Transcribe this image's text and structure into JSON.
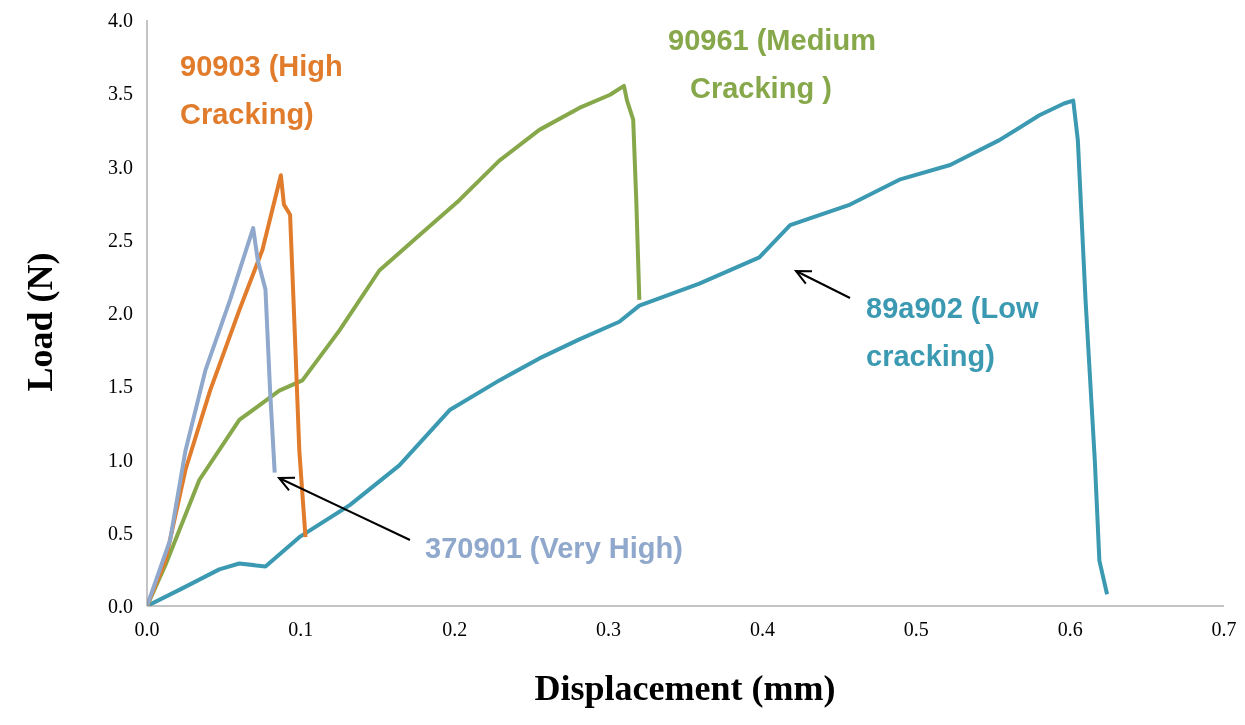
{
  "chart_data": {
    "type": "line",
    "xlabel": "Displacement (mm)",
    "ylabel": "Load (N)",
    "xlim": [
      0,
      0.7
    ],
    "xticks": [
      {
        "value": 0,
        "label": "0.0"
      },
      0.1,
      0.2,
      0.3,
      0.4,
      0.5,
      0.6,
      0.7
    ],
    "ylim": [
      0,
      4
    ],
    "yticks": [
      {
        "value": 0,
        "label": "0.0"
      },
      0.5,
      {
        "value": 1,
        "label": "1.0"
      },
      1.5,
      {
        "value": 2,
        "label": "2.0"
      },
      2.5,
      {
        "value": 3,
        "label": "3.0"
      },
      3.5,
      {
        "value": 4,
        "label": "4.0"
      }
    ],
    "marker": "none",
    "line_style": "solid",
    "series": [
      {
        "name": "89a902 (Low cracking)",
        "color": "#3b9ab2",
        "x": [
          0,
          0.021,
          0.047,
          0.06,
          0.077,
          0.099,
          0.132,
          0.164,
          0.197,
          0.229,
          0.255,
          0.281,
          0.307,
          0.32,
          0.359,
          0.398,
          0.418,
          0.457,
          0.489,
          0.522,
          0.554,
          0.58,
          0.596,
          0.602,
          0.605,
          0.61,
          0.616,
          0.619,
          0.624
        ],
        "values": [
          0,
          0.11,
          0.25,
          0.29,
          0.27,
          0.47,
          0.69,
          0.96,
          1.34,
          1.54,
          1.69,
          1.82,
          1.94,
          2.05,
          2.2,
          2.38,
          2.6,
          2.74,
          2.91,
          3.01,
          3.18,
          3.35,
          3.43,
          3.45,
          3.18,
          2.09,
          1.0,
          0.31,
          0.08
        ]
      },
      {
        "name": "90961 (Medium Cracking )",
        "color": "#86a84a",
        "x": [
          0,
          0.012,
          0.034,
          0.06,
          0.086,
          0.101,
          0.125,
          0.151,
          0.177,
          0.203,
          0.229,
          0.255,
          0.281,
          0.301,
          0.31,
          0.312,
          0.316,
          0.318,
          0.32
        ],
        "values": [
          0,
          0.28,
          0.86,
          1.27,
          1.47,
          1.54,
          1.88,
          2.29,
          2.53,
          2.77,
          3.04,
          3.25,
          3.4,
          3.49,
          3.55,
          3.45,
          3.32,
          2.77,
          2.09
        ]
      },
      {
        "name": "90903 (High Cracking)",
        "color": "#e07c2c",
        "x": [
          0,
          0.012,
          0.025,
          0.041,
          0.06,
          0.075,
          0.087,
          0.089,
          0.093,
          0.096,
          0.099,
          0.103
        ],
        "values": [
          0,
          0.31,
          0.93,
          1.47,
          2.02,
          2.43,
          2.94,
          2.74,
          2.67,
          1.88,
          1.06,
          0.47
        ]
      },
      {
        "name": "370901 (Very High)",
        "color": "#8fa8cc",
        "x": [
          0,
          0.015,
          0.025,
          0.038,
          0.054,
          0.069,
          0.072,
          0.077,
          0.08,
          0.083
        ],
        "values": [
          0,
          0.45,
          1.06,
          1.61,
          2.09,
          2.58,
          2.36,
          2.16,
          1.47,
          0.91
        ]
      }
    ]
  }
}
